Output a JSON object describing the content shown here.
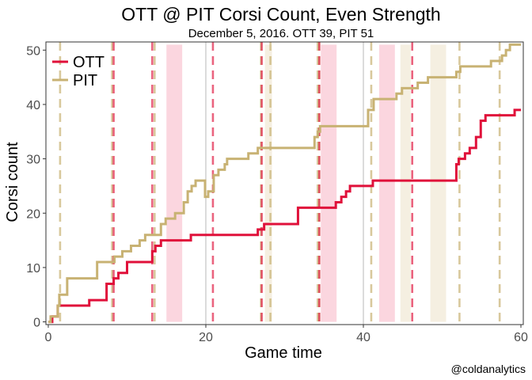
{
  "chart_data": {
    "type": "line",
    "title": "OTT @ PIT Corsi Count, Even Strength",
    "subtitle": "December 5, 2016. OTT 39, PIT 51",
    "xlabel": "Game time",
    "ylabel": "Corsi count",
    "caption": "@coldanalytics",
    "xlim": [
      -0.3,
      60.3
    ],
    "ylim": [
      -0.5,
      51.5
    ],
    "xticks": [
      0,
      20,
      40,
      60
    ],
    "yticks": [
      0,
      10,
      20,
      30,
      40,
      50
    ],
    "grid": true,
    "legend_position": "top-left",
    "colors": {
      "OTT": "#e0103a",
      "PIT": "#c8b273",
      "ott_band": "#fbd6df",
      "pit_band": "#f5efe1"
    },
    "series": [
      {
        "name": "OTT",
        "points": [
          [
            0,
            0
          ],
          [
            0.5,
            1
          ],
          [
            1.2,
            3
          ],
          [
            5.2,
            4
          ],
          [
            7.4,
            7
          ],
          [
            8.3,
            8
          ],
          [
            8.9,
            9
          ],
          [
            10.0,
            11
          ],
          [
            13.2,
            13
          ],
          [
            13.6,
            14
          ],
          [
            14.3,
            15
          ],
          [
            18.1,
            16
          ],
          [
            26.6,
            17
          ],
          [
            27.4,
            18
          ],
          [
            31.7,
            21
          ],
          [
            36.5,
            22
          ],
          [
            37.2,
            23
          ],
          [
            37.8,
            24
          ],
          [
            38.3,
            25
          ],
          [
            41.2,
            26
          ],
          [
            51.8,
            29
          ],
          [
            52.1,
            30
          ],
          [
            52.9,
            31
          ],
          [
            53.5,
            32
          ],
          [
            54.3,
            34
          ],
          [
            54.9,
            37
          ],
          [
            55.5,
            38
          ],
          [
            59.2,
            39
          ],
          [
            60,
            39
          ]
        ]
      },
      {
        "name": "PIT",
        "points": [
          [
            0,
            0
          ],
          [
            0.3,
            1
          ],
          [
            1.2,
            3
          ],
          [
            1.4,
            5
          ],
          [
            2.4,
            8
          ],
          [
            6.2,
            11
          ],
          [
            8.4,
            12
          ],
          [
            9.4,
            13
          ],
          [
            10.5,
            14
          ],
          [
            11.6,
            15
          ],
          [
            12.3,
            16
          ],
          [
            14.3,
            18
          ],
          [
            14.9,
            19
          ],
          [
            16.1,
            20
          ],
          [
            17.2,
            22
          ],
          [
            17.7,
            24
          ],
          [
            18.2,
            25
          ],
          [
            18.7,
            26
          ],
          [
            19.9,
            23
          ],
          [
            20.3,
            24
          ],
          [
            21.0,
            27
          ],
          [
            21.6,
            28
          ],
          [
            22.4,
            29
          ],
          [
            22.7,
            30
          ],
          [
            25.4,
            31
          ],
          [
            26.6,
            32
          ],
          [
            33.8,
            34
          ],
          [
            34.2,
            35
          ],
          [
            34.5,
            36
          ],
          [
            40.6,
            39
          ],
          [
            41.3,
            41
          ],
          [
            44.2,
            42
          ],
          [
            44.9,
            43
          ],
          [
            46.9,
            44
          ],
          [
            48.2,
            45
          ],
          [
            51.8,
            46
          ],
          [
            52.3,
            47
          ],
          [
            56.2,
            48
          ],
          [
            57.6,
            49
          ],
          [
            58.1,
            50
          ],
          [
            58.6,
            51
          ],
          [
            60,
            51
          ]
        ]
      }
    ],
    "pit_goals": [
      1.5,
      8.1,
      13.5,
      27.0,
      28.2,
      34.2,
      34.4,
      41.0,
      52.2,
      57.3
    ],
    "ott_goals": [
      8.3,
      13.2,
      20.9,
      27.1,
      34.4,
      46.2
    ],
    "grey_vlines": [
      20.0,
      40.0
    ],
    "ott_powerplay_bands": [
      [
        15.0,
        17.0
      ],
      [
        34.6,
        36.6
      ],
      [
        42.0,
        44.0
      ]
    ],
    "pit_powerplay_bands": [
      [
        27.5,
        28.4
      ],
      [
        44.7,
        46.0
      ],
      [
        48.5,
        50.5
      ]
    ]
  }
}
